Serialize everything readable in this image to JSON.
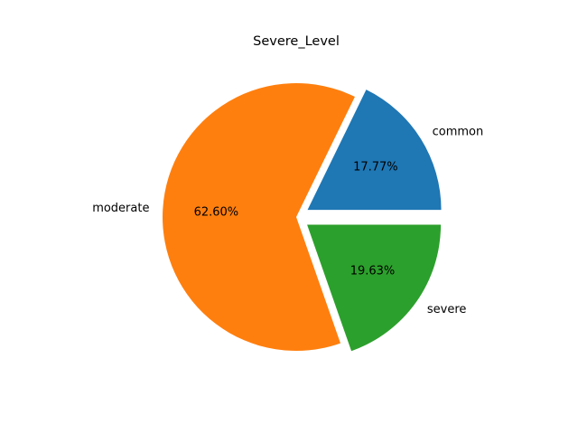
{
  "chart_data": {
    "type": "pie",
    "title": "Severe_Level",
    "slices": [
      {
        "label": "common",
        "value": 17.77,
        "pct_label": "17.77%",
        "color": "#1f77b4",
        "exploded": true
      },
      {
        "label": "moderate",
        "value": 62.6,
        "pct_label": "62.60%",
        "color": "#ff7f0e",
        "exploded": false
      },
      {
        "label": "severe",
        "value": 19.63,
        "pct_label": "19.63%",
        "color": "#2ca02c",
        "exploded": true
      }
    ],
    "start_angle_deg": 0,
    "direction": "counterclockwise",
    "legend": "none",
    "grid": false
  }
}
